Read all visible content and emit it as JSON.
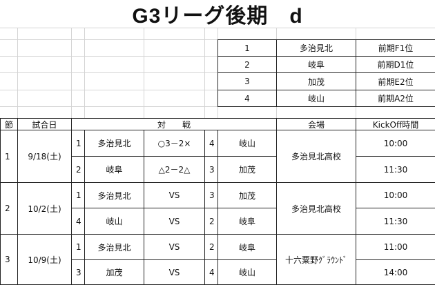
{
  "title": "G3リーグ後期　d",
  "teams": [
    {
      "no": "1",
      "name": "多治見北",
      "seed": "前期F1位"
    },
    {
      "no": "2",
      "name": "岐阜",
      "seed": "前期D1位"
    },
    {
      "no": "3",
      "name": "加茂",
      "seed": "前期E2位"
    },
    {
      "no": "4",
      "name": "岐山",
      "seed": "前期A2位"
    }
  ],
  "headers": {
    "round": "節",
    "date": "試合日",
    "match": "対　　戦",
    "venue": "会場",
    "kickoff": "KickOff時間"
  },
  "rounds": [
    {
      "round": "1",
      "date": "9/18(土)",
      "venue": "多治見北高校",
      "matches": [
        {
          "home_no": "1",
          "home": "多治見北",
          "result": "○3－2×",
          "away_no": "4",
          "away": "岐山",
          "time": "10:00"
        },
        {
          "home_no": "2",
          "home": "岐阜",
          "result": "△2－2△",
          "away_no": "3",
          "away": "加茂",
          "time": "11:30"
        }
      ]
    },
    {
      "round": "2",
      "date": "10/2(土)",
      "venue": "多治見北高校",
      "matches": [
        {
          "home_no": "1",
          "home": "多治見北",
          "result": "VS",
          "away_no": "3",
          "away": "加茂",
          "time": "10:00"
        },
        {
          "home_no": "4",
          "home": "岐山",
          "result": "VS",
          "away_no": "2",
          "away": "岐阜",
          "time": "11:30"
        }
      ]
    },
    {
      "round": "3",
      "date": "10/9(土)",
      "venue": "十六粟野ｸﾞﾗｳﾝﾄﾞ",
      "matches": [
        {
          "home_no": "1",
          "home": "多治見北",
          "result": "VS",
          "away_no": "2",
          "away": "岐阜",
          "time": "11:00"
        },
        {
          "home_no": "3",
          "home": "加茂",
          "result": "VS",
          "away_no": "4",
          "away": "岐山",
          "time": "14:00"
        }
      ]
    }
  ]
}
